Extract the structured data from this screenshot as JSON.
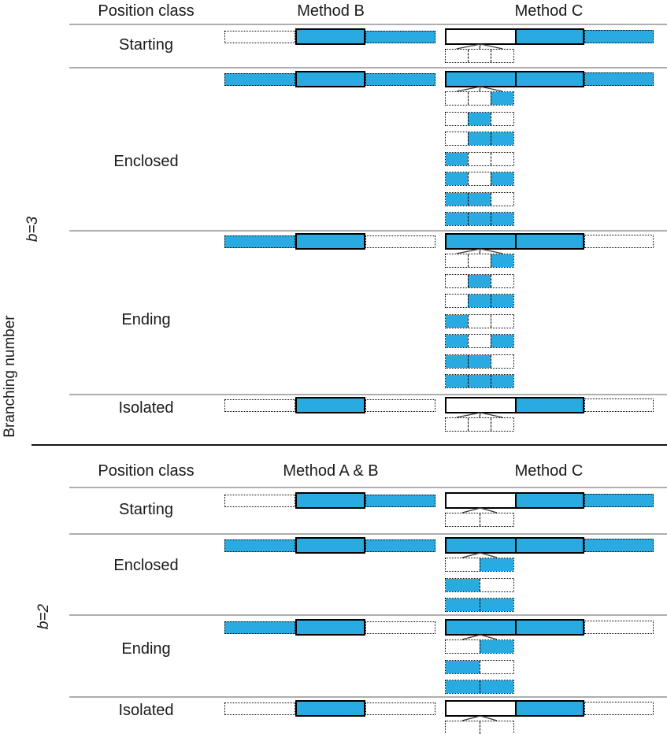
{
  "figure": {
    "axis_title": "Branching number",
    "colors": {
      "fill_cyan": "#29ABE2",
      "border_black": "#000000",
      "divider_gray": "#AEAEAE"
    },
    "sections": [
      {
        "branch_label": "b=3",
        "columns": {
          "position": "Position class",
          "left": "Method B",
          "right": "Method C"
        },
        "rows": [
          {
            "label": "Starting",
            "main_pattern": [
              0,
              1,
              1
            ],
            "expansions": [
              [
                0,
                0,
                0
              ]
            ]
          },
          {
            "label": "Enclosed",
            "main_pattern": [
              1,
              1,
              1
            ],
            "expansions": [
              [
                0,
                0,
                1
              ],
              [
                0,
                1,
                0
              ],
              [
                0,
                1,
                1
              ],
              [
                1,
                0,
                0
              ],
              [
                1,
                0,
                1
              ],
              [
                1,
                1,
                0
              ],
              [
                1,
                1,
                1
              ]
            ]
          },
          {
            "label": "Ending",
            "main_pattern": [
              1,
              1,
              0
            ],
            "expansions": [
              [
                0,
                0,
                1
              ],
              [
                0,
                1,
                0
              ],
              [
                0,
                1,
                1
              ],
              [
                1,
                0,
                0
              ],
              [
                1,
                0,
                1
              ],
              [
                1,
                1,
                0
              ],
              [
                1,
                1,
                1
              ]
            ]
          },
          {
            "label": "Isolated",
            "main_pattern": [
              0,
              1,
              0
            ],
            "expansions": [
              [
                0,
                0,
                0
              ]
            ]
          }
        ]
      },
      {
        "branch_label": "b=2",
        "columns": {
          "position": "Position class",
          "left": "Method A & B",
          "right": "Method C"
        },
        "rows": [
          {
            "label": "Starting",
            "main_pattern": [
              0,
              1,
              1
            ],
            "expansions": [
              [
                0,
                0
              ]
            ]
          },
          {
            "label": "Enclosed",
            "main_pattern": [
              1,
              1,
              1
            ],
            "expansions": [
              [
                0,
                1
              ],
              [
                1,
                0
              ],
              [
                1,
                1
              ]
            ]
          },
          {
            "label": "Ending",
            "main_pattern": [
              1,
              1,
              0
            ],
            "expansions": [
              [
                0,
                1
              ],
              [
                1,
                0
              ],
              [
                1,
                1
              ]
            ]
          },
          {
            "label": "Isolated",
            "main_pattern": [
              0,
              1,
              0
            ],
            "expansions": [
              [
                0,
                0
              ]
            ]
          }
        ]
      }
    ]
  }
}
